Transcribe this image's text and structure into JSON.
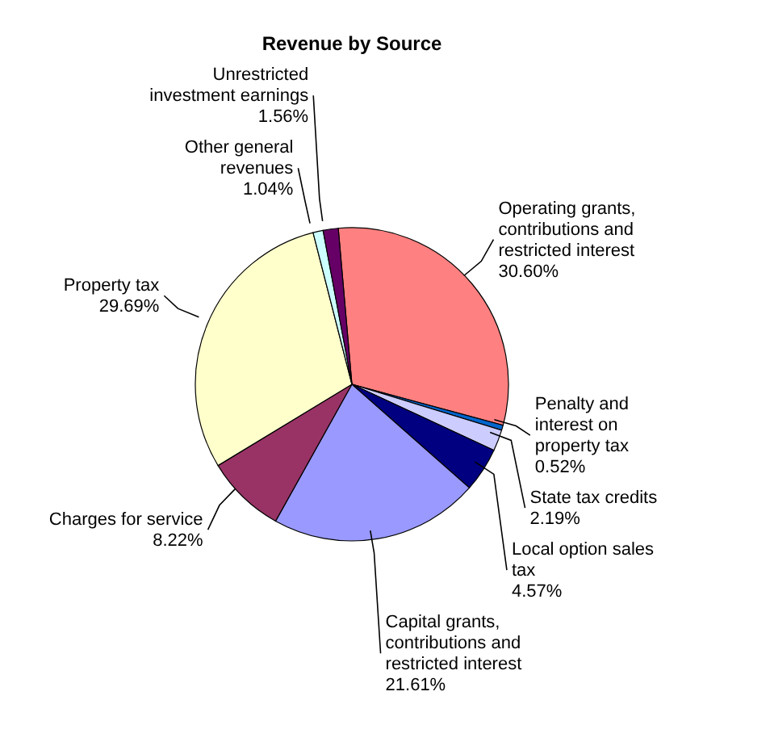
{
  "chart_data": {
    "type": "pie",
    "title": "Revenue by Source",
    "categories": [
      "Operating grants, contributions and restricted interest",
      "Penalty and interest on property tax",
      "State tax credits",
      "Local option sales tax",
      "Capital grants, contributions and restricted interest",
      "Charges for service",
      "Property tax",
      "Other general revenues",
      "Unrestricted investment earnings"
    ],
    "values": [
      30.6,
      0.52,
      2.19,
      4.57,
      21.61,
      8.22,
      29.69,
      1.04,
      1.56
    ],
    "value_labels": [
      "30.60%",
      "0.52%",
      "2.19%",
      "4.57%",
      "21.61%",
      "8.22%",
      "29.69%",
      "1.04%",
      "1.56%"
    ],
    "colors": [
      "#ff8080",
      "#0066cc",
      "#ccccff",
      "#000080",
      "#9999ff",
      "#993366",
      "#ffffcc",
      "#ccffff",
      "#660066"
    ],
    "legend": false
  }
}
